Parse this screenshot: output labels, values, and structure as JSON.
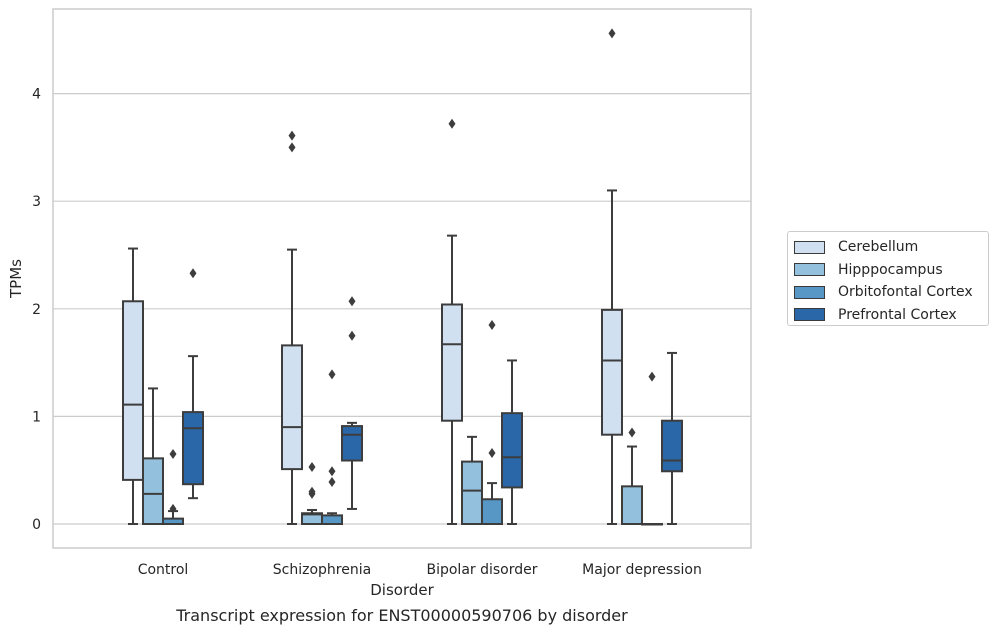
{
  "chart_data": {
    "type": "box",
    "title": "",
    "xlabel": "Disorder",
    "ylabel": "TPMs",
    "caption": "Transcript expression for ENST00000590706 by disorder",
    "categories": [
      "Control",
      "Schizophrenia",
      "Bipolar disorder",
      "Major depression"
    ],
    "yticks": [
      "0",
      "1",
      "2",
      "3",
      "4"
    ],
    "ylim": [
      -0.22,
      4.8
    ],
    "grid": "horizontal",
    "legend_position": "right",
    "series": [
      {
        "name": "Cerebellum",
        "color": "#d0e0f1",
        "boxes": [
          {
            "whislo": 0.0,
            "q1": 0.41,
            "med": 1.11,
            "q3": 2.07,
            "whishi": 2.56,
            "fliers": []
          },
          {
            "whislo": 0.0,
            "q1": 0.51,
            "med": 0.9,
            "q3": 1.66,
            "whishi": 2.55,
            "fliers": [
              3.5,
              3.61
            ]
          },
          {
            "whislo": 0.0,
            "q1": 0.96,
            "med": 1.67,
            "q3": 2.04,
            "whishi": 2.68,
            "fliers": [
              3.72
            ]
          },
          {
            "whislo": 0.0,
            "q1": 0.83,
            "med": 1.52,
            "q3": 1.99,
            "whishi": 3.1,
            "fliers": [
              4.56
            ]
          }
        ]
      },
      {
        "name": "Hipppocampus",
        "color": "#93c0dc",
        "boxes": [
          {
            "whislo": 0.0,
            "q1": 0.0,
            "med": 0.28,
            "q3": 0.61,
            "whishi": 1.26,
            "fliers": []
          },
          {
            "whislo": 0.0,
            "q1": 0.0,
            "med": 0.09,
            "q3": 0.1,
            "whishi": 0.13,
            "fliers": [
              0.28,
              0.3,
              0.53
            ]
          },
          {
            "whislo": 0.0,
            "q1": 0.0,
            "med": 0.31,
            "q3": 0.58,
            "whishi": 0.81,
            "fliers": []
          },
          {
            "whislo": 0.0,
            "q1": 0.0,
            "med": 0.0,
            "q3": 0.35,
            "whishi": 0.72,
            "fliers": [
              0.85
            ]
          }
        ]
      },
      {
        "name": "Orbitofontal Cortex",
        "color": "#5797c6",
        "boxes": [
          {
            "whislo": 0.0,
            "q1": 0.0,
            "med": 0.0,
            "q3": 0.05,
            "whishi": 0.12,
            "fliers": [
              0.14,
              0.65
            ]
          },
          {
            "whislo": 0.0,
            "q1": 0.0,
            "med": 0.0,
            "q3": 0.08,
            "whishi": 0.1,
            "fliers": [
              0.39,
              0.49,
              1.39
            ]
          },
          {
            "whislo": 0.0,
            "q1": 0.0,
            "med": 0.0,
            "q3": 0.23,
            "whishi": 0.38,
            "fliers": [
              0.66,
              1.85
            ]
          },
          {
            "whislo": 0.0,
            "q1": 0.0,
            "med": 0.0,
            "q3": 0.0,
            "whishi": 0.0,
            "fliers": [
              1.37
            ]
          }
        ]
      },
      {
        "name": "Prefrontal Cortex",
        "color": "#2a67a8",
        "boxes": [
          {
            "whislo": 0.24,
            "q1": 0.37,
            "med": 0.89,
            "q3": 1.04,
            "whishi": 1.56,
            "fliers": [
              2.33
            ]
          },
          {
            "whislo": 0.14,
            "q1": 0.59,
            "med": 0.83,
            "q3": 0.91,
            "whishi": 0.94,
            "fliers": [
              1.75,
              2.07
            ]
          },
          {
            "whislo": 0.0,
            "q1": 0.34,
            "med": 0.62,
            "q3": 1.03,
            "whishi": 1.52,
            "fliers": []
          },
          {
            "whislo": 0.0,
            "q1": 0.49,
            "med": 0.59,
            "q3": 0.96,
            "whishi": 1.59,
            "fliers": []
          }
        ]
      }
    ]
  }
}
